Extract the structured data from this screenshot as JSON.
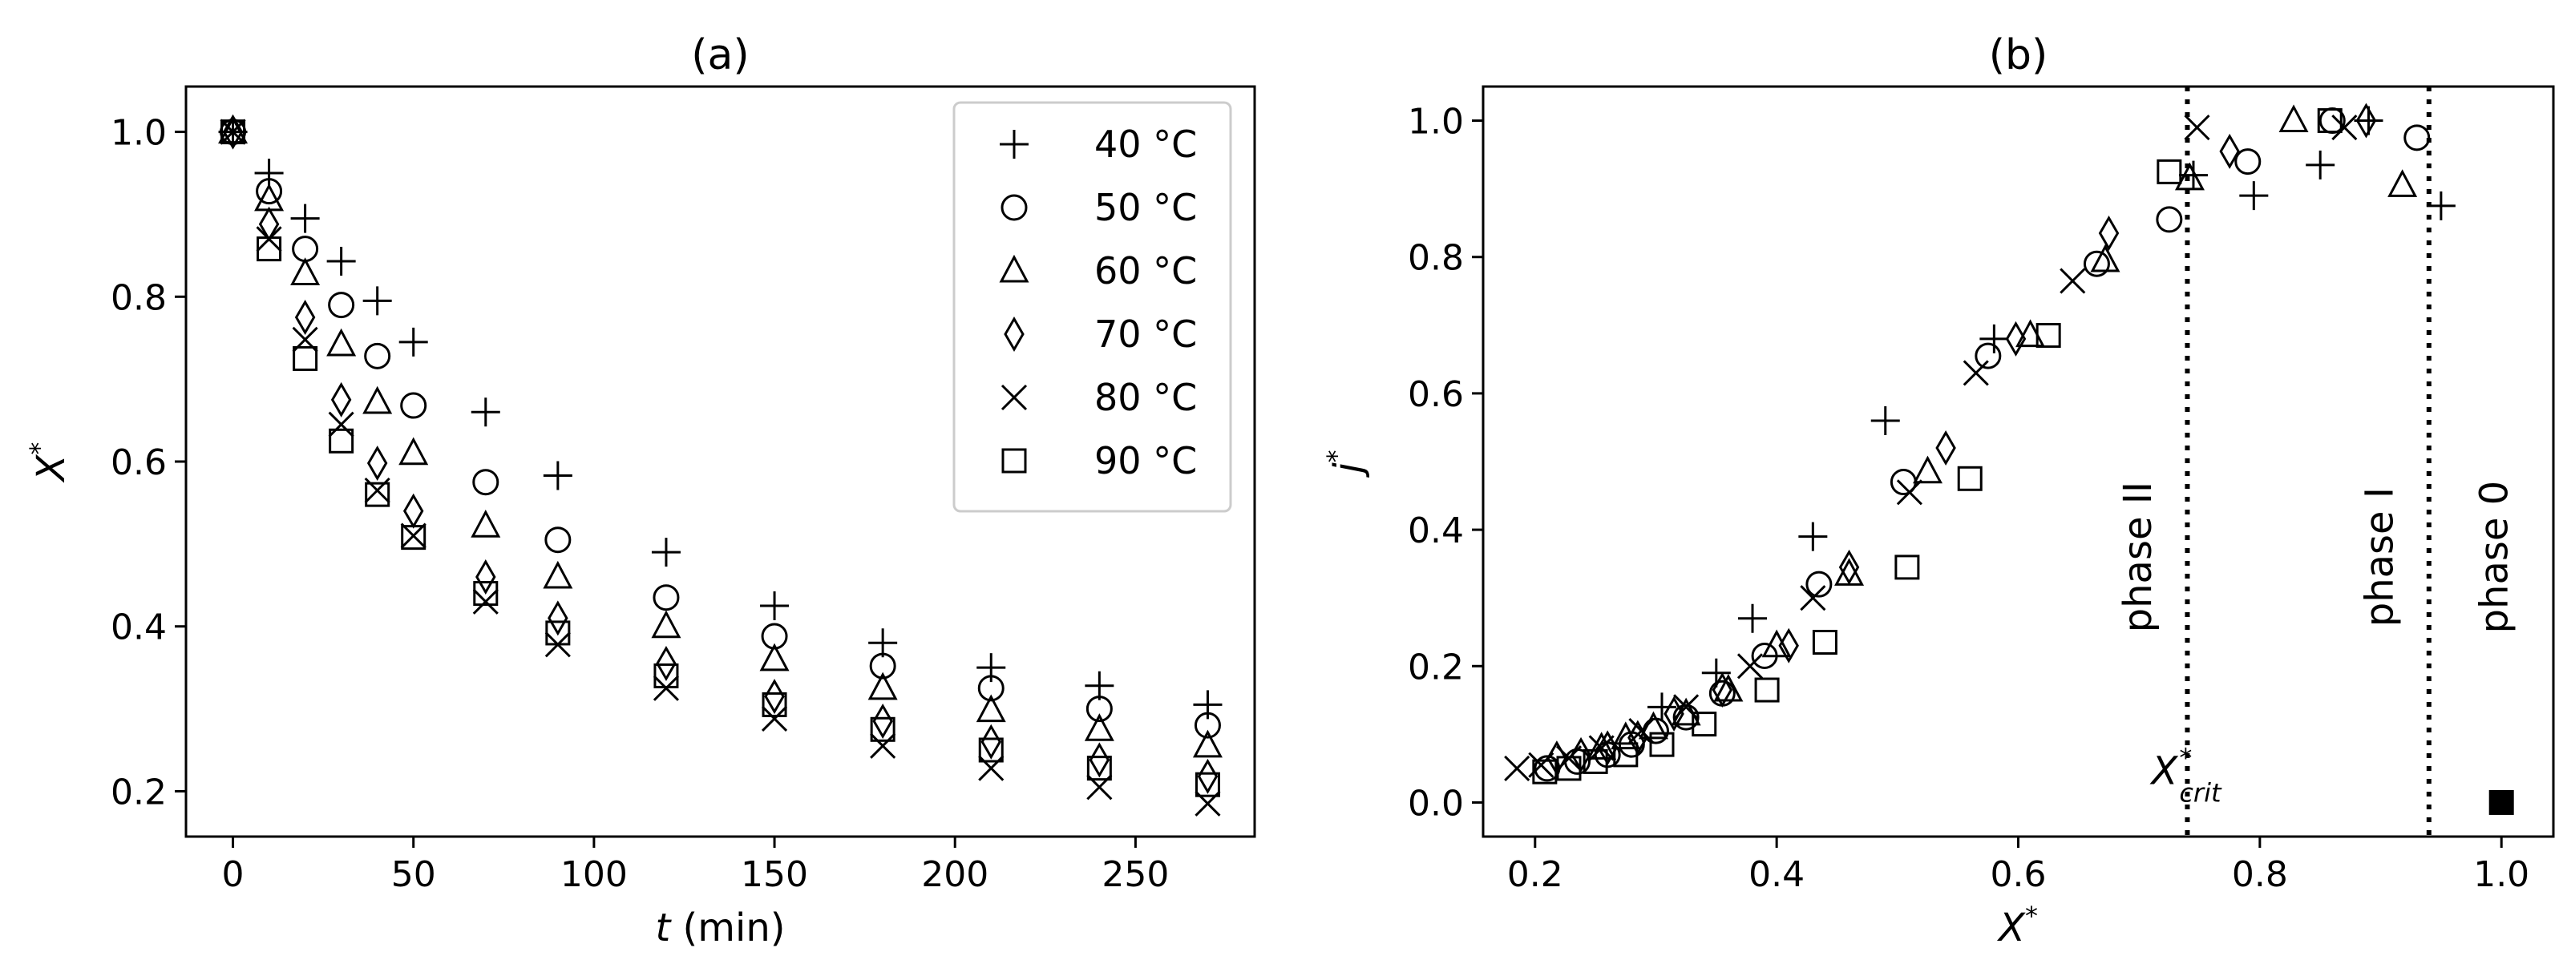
{
  "chart_data": [
    {
      "type": "scatter",
      "title": "(a)",
      "xlabel_italic": "t",
      "xlabel_rest": " (min)",
      "ylabel_base": "X",
      "ylabel_sup": "*",
      "xlim": [
        -13,
        283
      ],
      "ylim": [
        0.145,
        1.055
      ],
      "xticks": [
        0,
        50,
        100,
        150,
        200,
        250
      ],
      "xtick_labels": [
        "0",
        "50",
        "100",
        "150",
        "200",
        "250"
      ],
      "yticks": [
        0.2,
        0.4,
        0.6,
        0.8,
        1.0
      ],
      "ytick_labels": [
        "0.2",
        "0.4",
        "0.6",
        "0.8",
        "1.0"
      ],
      "legend_position": "top-right",
      "series": [
        {
          "name": "40 °C",
          "marker": "plus",
          "x": [
            0,
            10,
            20,
            30,
            40,
            50,
            70,
            90,
            120,
            150,
            180,
            210,
            240,
            270
          ],
          "y": [
            1.0,
            0.95,
            0.895,
            0.843,
            0.795,
            0.745,
            0.66,
            0.583,
            0.49,
            0.425,
            0.38,
            0.35,
            0.328,
            0.305
          ]
        },
        {
          "name": "50 °C",
          "marker": "circle",
          "x": [
            0,
            10,
            20,
            30,
            40,
            50,
            70,
            90,
            120,
            150,
            180,
            210,
            240,
            270
          ],
          "y": [
            1.0,
            0.928,
            0.858,
            0.79,
            0.728,
            0.668,
            0.575,
            0.505,
            0.435,
            0.388,
            0.352,
            0.325,
            0.3,
            0.28
          ]
        },
        {
          "name": "60 °C",
          "marker": "triangle",
          "x": [
            0,
            10,
            20,
            30,
            40,
            50,
            70,
            90,
            120,
            150,
            180,
            210,
            240,
            270
          ],
          "y": [
            1.0,
            0.918,
            0.828,
            0.742,
            0.672,
            0.61,
            0.522,
            0.46,
            0.4,
            0.36,
            0.325,
            0.298,
            0.275,
            0.255
          ]
        },
        {
          "name": "70 °C",
          "marker": "diamond",
          "x": [
            0,
            10,
            20,
            30,
            40,
            50,
            70,
            90,
            120,
            150,
            180,
            210,
            240,
            270
          ],
          "y": [
            1.0,
            0.888,
            0.775,
            0.675,
            0.598,
            0.54,
            0.46,
            0.41,
            0.355,
            0.315,
            0.285,
            0.26,
            0.238,
            0.218
          ]
        },
        {
          "name": "80 °C",
          "marker": "x",
          "x": [
            0,
            10,
            20,
            30,
            40,
            50,
            70,
            90,
            120,
            150,
            180,
            210,
            240,
            270
          ],
          "y": [
            1.0,
            0.87,
            0.748,
            0.645,
            0.565,
            0.51,
            0.43,
            0.378,
            0.325,
            0.288,
            0.255,
            0.228,
            0.205,
            0.185
          ]
        },
        {
          "name": "90 °C",
          "marker": "square",
          "x": [
            0,
            10,
            20,
            30,
            40,
            50,
            70,
            90,
            120,
            150,
            180,
            210,
            240,
            270
          ],
          "y": [
            1.0,
            0.858,
            0.725,
            0.625,
            0.56,
            0.508,
            0.44,
            0.392,
            0.34,
            0.305,
            0.275,
            0.25,
            0.228,
            0.208
          ]
        }
      ]
    },
    {
      "type": "scatter",
      "title": "(b)",
      "xlabel_base": "X",
      "xlabel_sup": "*",
      "ylabel_base": "j",
      "ylabel_sup": "*",
      "xlim": [
        0.157,
        1.043
      ],
      "ylim": [
        -0.05,
        1.05
      ],
      "xticks": [
        0.2,
        0.4,
        0.6,
        0.8,
        1.0
      ],
      "xtick_labels": [
        "0.2",
        "0.4",
        "0.6",
        "0.8",
        "1.0"
      ],
      "yticks": [
        0.0,
        0.2,
        0.4,
        0.6,
        0.8,
        1.0
      ],
      "ytick_labels": [
        "0.0",
        "0.2",
        "0.4",
        "0.6",
        "0.8",
        "1.0"
      ],
      "vertical_lines": [
        0.74,
        0.94
      ],
      "phase_labels": [
        {
          "text": "phase II",
          "x": 0.71,
          "y": 0.36
        },
        {
          "text": "phase I",
          "x": 0.91,
          "y": 0.36
        },
        {
          "text": "phase 0",
          "x": 1.005,
          "y": 0.36
        }
      ],
      "annotation": {
        "base": "X",
        "sup": "*",
        "sub": "crit",
        "x": 0.74,
        "y": 0.06
      },
      "series": [
        {
          "name": "40 °C",
          "marker": "plus",
          "x": [
            0.305,
            0.35,
            0.38,
            0.43,
            0.49,
            0.58,
            0.745,
            0.795,
            0.85,
            0.89,
            0.95
          ],
          "y": [
            0.14,
            0.19,
            0.27,
            0.39,
            0.56,
            0.68,
            0.92,
            0.89,
            0.935,
            1.0,
            0.875
          ]
        },
        {
          "name": "50 °C",
          "marker": "circle",
          "x": [
            0.21,
            0.235,
            0.26,
            0.28,
            0.3,
            0.325,
            0.355,
            0.39,
            0.435,
            0.505,
            0.575,
            0.665,
            0.725,
            0.79,
            0.86,
            0.93
          ],
          "y": [
            0.05,
            0.06,
            0.07,
            0.085,
            0.105,
            0.125,
            0.16,
            0.215,
            0.32,
            0.47,
            0.655,
            0.79,
            0.855,
            0.94,
            1.0,
            0.975
          ]
        },
        {
          "name": "60 °C",
          "marker": "triangle",
          "x": [
            0.255,
            0.275,
            0.298,
            0.325,
            0.36,
            0.4,
            0.46,
            0.525,
            0.61,
            0.672,
            0.742,
            0.828,
            0.918
          ],
          "y": [
            0.08,
            0.095,
            0.11,
            0.13,
            0.165,
            0.23,
            0.335,
            0.485,
            0.685,
            0.795,
            0.915,
            1.0,
            0.905
          ]
        },
        {
          "name": "70 °C",
          "marker": "diamond",
          "x": [
            0.218,
            0.238,
            0.26,
            0.285,
            0.315,
            0.355,
            0.41,
            0.46,
            0.54,
            0.598,
            0.675,
            0.775,
            0.888
          ],
          "y": [
            0.065,
            0.07,
            0.08,
            0.095,
            0.13,
            0.165,
            0.23,
            0.345,
            0.52,
            0.68,
            0.835,
            0.955,
            1.0
          ]
        },
        {
          "name": "80 °C",
          "marker": "x",
          "x": [
            0.185,
            0.205,
            0.228,
            0.255,
            0.288,
            0.325,
            0.378,
            0.43,
            0.51,
            0.565,
            0.645,
            0.748,
            0.87
          ],
          "y": [
            0.05,
            0.055,
            0.065,
            0.08,
            0.105,
            0.14,
            0.2,
            0.3,
            0.455,
            0.63,
            0.765,
            0.99,
            0.99
          ]
        },
        {
          "name": "90 °C",
          "marker": "square",
          "x": [
            0.208,
            0.228,
            0.25,
            0.275,
            0.305,
            0.34,
            0.392,
            0.44,
            0.508,
            0.56,
            0.625,
            0.725,
            0.858
          ],
          "y": [
            0.045,
            0.05,
            0.06,
            0.07,
            0.085,
            0.115,
            0.165,
            0.235,
            0.345,
            0.475,
            0.685,
            0.925,
            1.0
          ]
        }
      ],
      "extra_points": [
        {
          "marker": "filled-square",
          "x": 1.0,
          "y": 0.0
        }
      ]
    }
  ]
}
